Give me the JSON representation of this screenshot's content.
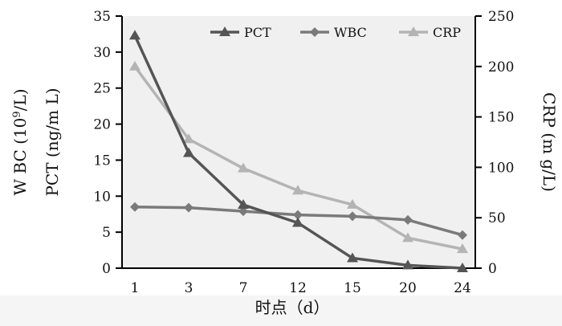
{
  "chart_data": {
    "type": "line",
    "xlabel": "时点（d）",
    "categories": [
      "1",
      "3",
      "7",
      "12",
      "15",
      "20",
      "24"
    ],
    "y_left": {
      "label_line1": "W BC (10",
      "label_line1_sup": "9",
      "label_line1_end": "/L)",
      "label_line2": "PCT (ng/m L)",
      "range": [
        0,
        35
      ],
      "ticks": [
        "0",
        "5",
        "10",
        "15",
        "20",
        "25",
        "30",
        "35"
      ]
    },
    "y_right": {
      "label": "CRP (m g/L)",
      "range": [
        0,
        250
      ],
      "ticks": [
        "0",
        "50",
        "100",
        "150",
        "200",
        "250"
      ]
    },
    "legend_position": "top",
    "grid": false,
    "series": [
      {
        "name": "PCT",
        "axis": "left",
        "marker": "triangle",
        "color": "#555555",
        "values": [
          32.3,
          16.0,
          8.8,
          6.3,
          1.4,
          0.4,
          0.0
        ]
      },
      {
        "name": "WBC",
        "axis": "left",
        "marker": "diamond",
        "color": "#7a7a7a",
        "values": [
          8.5,
          8.4,
          7.9,
          7.4,
          7.2,
          6.7,
          4.6
        ]
      },
      {
        "name": "CRP",
        "axis": "right",
        "marker": "triangle",
        "color": "#b4b4b4",
        "values": [
          200,
          128,
          99,
          77,
          63,
          30,
          19
        ]
      }
    ]
  }
}
